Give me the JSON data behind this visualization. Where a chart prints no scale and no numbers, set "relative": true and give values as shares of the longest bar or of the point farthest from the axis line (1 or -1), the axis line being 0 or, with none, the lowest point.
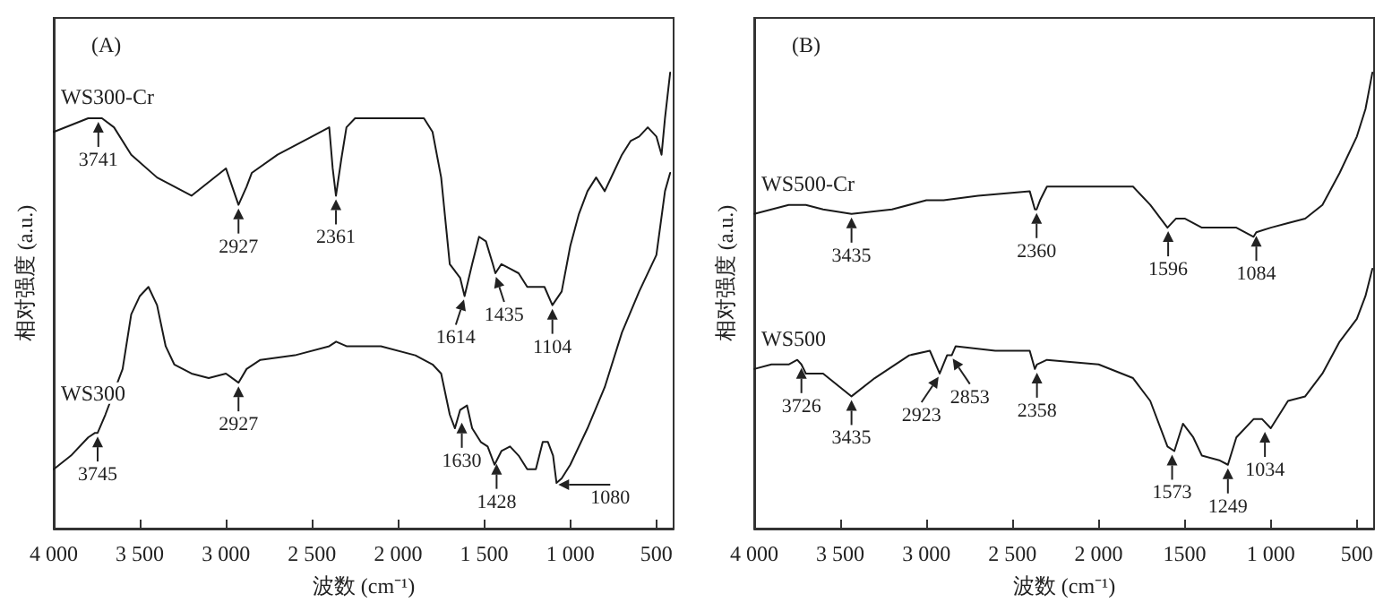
{
  "chart_data": [
    {
      "type": "line",
      "title": "(A)",
      "xlabel": "波数 (cm⁻¹)",
      "ylabel": "相对强度 (a.u.)",
      "relative": true,
      "grid": false,
      "legend": false,
      "xlim": [
        4000,
        400
      ],
      "xticks": [
        {
          "value": 4000,
          "label": "4 000"
        },
        {
          "value": 3500,
          "label": "3 500"
        },
        {
          "value": 3000,
          "label": "3 000"
        },
        {
          "value": 2500,
          "label": "2 500"
        },
        {
          "value": 2000,
          "label": "2 000"
        },
        {
          "value": 1500,
          "label": "1 500"
        },
        {
          "value": 1000,
          "label": "1 000"
        },
        {
          "value": 500,
          "label": "500"
        }
      ],
      "series": [
        {
          "name": "WS300-Cr",
          "color": "#1a1a1a",
          "x": [
            4000,
            3800,
            3760,
            3720,
            3650,
            3550,
            3400,
            3200,
            3000,
            2927,
            2880,
            2850,
            2700,
            2500,
            2400,
            2380,
            2361,
            2330,
            2300,
            2250,
            2000,
            1850,
            1800,
            1750,
            1700,
            1680,
            1640,
            1614,
            1570,
            1530,
            1490,
            1450,
            1435,
            1400,
            1350,
            1300,
            1250,
            1200,
            1150,
            1104,
            1050,
            1000,
            950,
            900,
            850,
            800,
            750,
            700,
            650,
            600,
            550,
            500,
            470,
            450,
            420
          ],
          "values": [
            0.87,
            0.9,
            0.9,
            0.9,
            0.88,
            0.82,
            0.77,
            0.73,
            0.79,
            0.71,
            0.75,
            0.78,
            0.82,
            0.86,
            0.88,
            0.79,
            0.73,
            0.81,
            0.88,
            0.9,
            0.9,
            0.9,
            0.87,
            0.77,
            0.58,
            0.57,
            0.55,
            0.51,
            0.58,
            0.64,
            0.63,
            0.58,
            0.56,
            0.58,
            0.57,
            0.56,
            0.53,
            0.53,
            0.53,
            0.49,
            0.52,
            0.62,
            0.69,
            0.74,
            0.77,
            0.74,
            0.78,
            0.82,
            0.85,
            0.86,
            0.88,
            0.86,
            0.82,
            0.9,
            1.0
          ]
        },
        {
          "name": "WS300",
          "color": "#1a1a1a",
          "x": [
            4000,
            3900,
            3800,
            3760,
            3745,
            3700,
            3600,
            3550,
            3500,
            3450,
            3400,
            3350,
            3300,
            3200,
            3100,
            3000,
            2927,
            2880,
            2800,
            2600,
            2400,
            2360,
            2300,
            2100,
            1900,
            1800,
            1750,
            1700,
            1670,
            1640,
            1600,
            1570,
            1520,
            1480,
            1440,
            1400,
            1350,
            1300,
            1250,
            1200,
            1160,
            1130,
            1100,
            1080,
            1050,
            1000,
            900,
            800,
            700,
            600,
            500,
            450,
            420
          ],
          "values": [
            0.13,
            0.16,
            0.2,
            0.21,
            0.21,
            0.25,
            0.35,
            0.47,
            0.51,
            0.53,
            0.49,
            0.4,
            0.36,
            0.34,
            0.33,
            0.34,
            0.32,
            0.35,
            0.37,
            0.38,
            0.4,
            0.41,
            0.4,
            0.4,
            0.38,
            0.36,
            0.34,
            0.25,
            0.22,
            0.26,
            0.27,
            0.22,
            0.19,
            0.18,
            0.14,
            0.17,
            0.18,
            0.16,
            0.13,
            0.13,
            0.19,
            0.19,
            0.16,
            0.1,
            0.11,
            0.14,
            0.22,
            0.31,
            0.43,
            0.52,
            0.6,
            0.74,
            0.78
          ]
        }
      ],
      "annotations": [
        {
          "text": "3741",
          "x": 3741,
          "y": 0.9
        },
        {
          "text": "2927",
          "x": 2927,
          "y": 0.71
        },
        {
          "text": "2361",
          "x": 2361,
          "y": 0.73
        },
        {
          "text": "1614",
          "x": 1614,
          "y": 0.51
        },
        {
          "text": "1435",
          "x": 1435,
          "y": 0.56
        },
        {
          "text": "1104",
          "x": 1104,
          "y": 0.49
        },
        {
          "text": "3745",
          "x": 3745,
          "y": 0.21
        },
        {
          "text": "2927",
          "x": 2927,
          "y": 0.32
        },
        {
          "text": "1630",
          "x": 1630,
          "y": 0.24
        },
        {
          "text": "1428",
          "x": 1428,
          "y": 0.15
        },
        {
          "text": "1080",
          "x": 1080,
          "y": 0.1
        }
      ]
    },
    {
      "type": "line",
      "title": "(B)",
      "xlabel": "波数 (cm⁻¹)",
      "ylabel": "相对强度 (a.u.)",
      "relative": true,
      "grid": false,
      "legend": false,
      "xlim": [
        4000,
        400
      ],
      "xticks": [
        {
          "value": 4000,
          "label": "4 000"
        },
        {
          "value": 3500,
          "label": "3 500"
        },
        {
          "value": 3000,
          "label": "3 000"
        },
        {
          "value": 2500,
          "label": "2 500"
        },
        {
          "value": 2000,
          "label": "2 000"
        },
        {
          "value": 1500,
          "label": "1500"
        },
        {
          "value": 1000,
          "label": "1 000"
        },
        {
          "value": 500,
          "label": "500"
        }
      ],
      "series": [
        {
          "name": "WS500-Cr",
          "color": "#1a1a1a",
          "x": [
            4000,
            3800,
            3700,
            3600,
            3435,
            3200,
            3000,
            2900,
            2700,
            2400,
            2370,
            2360,
            2340,
            2300,
            2000,
            1800,
            1700,
            1600,
            1550,
            1500,
            1400,
            1300,
            1200,
            1100,
            1084,
            1000,
            900,
            800,
            700,
            600,
            500,
            450,
            410
          ],
          "values": [
            0.69,
            0.71,
            0.71,
            0.7,
            0.69,
            0.7,
            0.72,
            0.72,
            0.73,
            0.74,
            0.7,
            0.7,
            0.72,
            0.75,
            0.75,
            0.75,
            0.71,
            0.66,
            0.68,
            0.68,
            0.66,
            0.66,
            0.66,
            0.64,
            0.65,
            0.66,
            0.67,
            0.68,
            0.71,
            0.78,
            0.86,
            0.92,
            1.0
          ]
        },
        {
          "name": "WS500",
          "color": "#1a1a1a",
          "x": [
            4000,
            3900,
            3800,
            3750,
            3726,
            3700,
            3650,
            3600,
            3435,
            3300,
            3100,
            2980,
            2923,
            2880,
            2853,
            2830,
            2600,
            2400,
            2370,
            2358,
            2300,
            2000,
            1800,
            1700,
            1600,
            1560,
            1510,
            1450,
            1400,
            1300,
            1249,
            1200,
            1100,
            1050,
            1000,
            900,
            800,
            700,
            600,
            500,
            450,
            410
          ],
          "values": [
            0.35,
            0.36,
            0.36,
            0.37,
            0.36,
            0.34,
            0.34,
            0.34,
            0.29,
            0.33,
            0.38,
            0.39,
            0.34,
            0.38,
            0.38,
            0.4,
            0.39,
            0.39,
            0.35,
            0.36,
            0.37,
            0.36,
            0.33,
            0.28,
            0.18,
            0.17,
            0.23,
            0.2,
            0.16,
            0.15,
            0.14,
            0.2,
            0.24,
            0.24,
            0.22,
            0.28,
            0.29,
            0.34,
            0.41,
            0.46,
            0.51,
            0.57
          ]
        }
      ],
      "annotations": [
        {
          "text": "3435",
          "x": 3435,
          "y": 0.69
        },
        {
          "text": "2360",
          "x": 2360,
          "y": 0.7
        },
        {
          "text": "1596",
          "x": 1596,
          "y": 0.66
        },
        {
          "text": "1084",
          "x": 1084,
          "y": 0.65
        },
        {
          "text": "3726",
          "x": 3726,
          "y": 0.36
        },
        {
          "text": "3435",
          "x": 3435,
          "y": 0.29
        },
        {
          "text": "2923",
          "x": 2923,
          "y": 0.34
        },
        {
          "text": "2853",
          "x": 2853,
          "y": 0.38
        },
        {
          "text": "2358",
          "x": 2358,
          "y": 0.35
        },
        {
          "text": "1573",
          "x": 1573,
          "y": 0.17
        },
        {
          "text": "1249",
          "x": 1249,
          "y": 0.14
        },
        {
          "text": "1034",
          "x": 1034,
          "y": 0.22
        }
      ]
    }
  ]
}
